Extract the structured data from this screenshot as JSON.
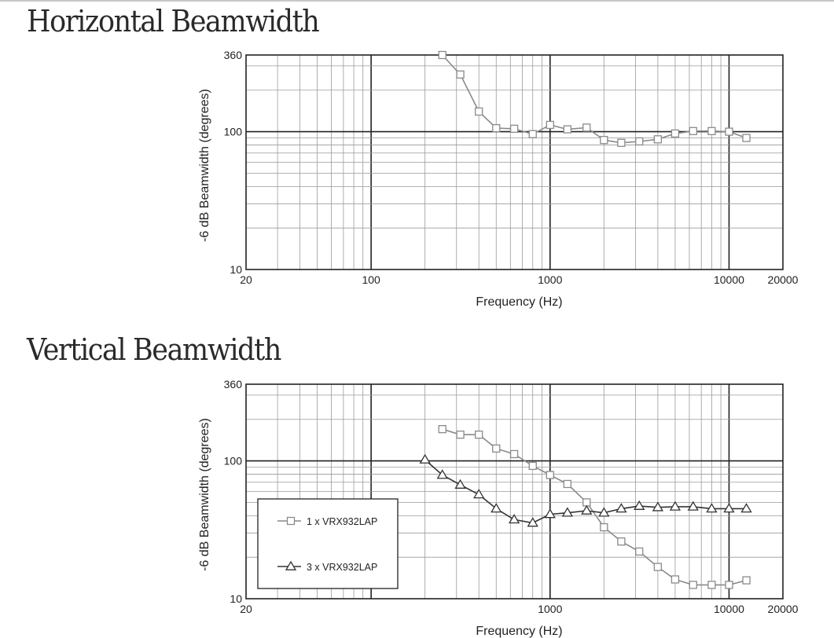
{
  "titles": {
    "horizontal": "Horizontal Beamwidth",
    "vertical": "Vertical Beamwidth"
  },
  "colors": {
    "grid_minor": "#9a9a9a",
    "grid_major": "#222222",
    "series_1": "#8a8a8a",
    "series_3": "#333333"
  },
  "chart_data": [
    {
      "type": "line",
      "title": "Horizontal Beamwidth",
      "xlabel": "Frequency (Hz)",
      "ylabel": "-6 dB Beamwidth (degrees)",
      "x_scale": "log",
      "y_scale": "log",
      "xlim": [
        20,
        20000
      ],
      "ylim": [
        10,
        360
      ],
      "x_ticks": [
        {
          "value": 20,
          "label": "20"
        },
        {
          "value": 100,
          "label": "100"
        },
        {
          "value": 1000,
          "label": "1000"
        },
        {
          "value": 10000,
          "label": "10000"
        },
        {
          "value": 20000,
          "label": "20000"
        }
      ],
      "y_ticks": [
        {
          "value": 360,
          "label": "360"
        },
        {
          "value": 100,
          "label": "100"
        },
        {
          "value": 10,
          "label": "10"
        }
      ],
      "grid": true,
      "legend": null,
      "series": [
        {
          "marker": "square",
          "x": [
            250,
            315,
            400,
            500,
            630,
            800,
            1000,
            1250,
            1600,
            2000,
            2500,
            3150,
            4000,
            5000,
            6300,
            8000,
            10000,
            12500
          ],
          "y": [
            360,
            260,
            140,
            106,
            105,
            96,
            112,
            104,
            107,
            87,
            83,
            85,
            88,
            97,
            101,
            101,
            100,
            90
          ]
        }
      ]
    },
    {
      "type": "line",
      "title": "Vertical Beamwidth",
      "xlabel": "Frequency (Hz)",
      "ylabel": "-6 dB Beamwidth (degrees)",
      "x_scale": "log",
      "y_scale": "log",
      "xlim": [
        20,
        20000
      ],
      "ylim": [
        10,
        360
      ],
      "x_ticks": [
        {
          "value": 20,
          "label": "20"
        },
        {
          "value": 1000,
          "label": "1000"
        },
        {
          "value": 10000,
          "label": "10000"
        },
        {
          "value": 20000,
          "label": "20000"
        }
      ],
      "y_ticks": [
        {
          "value": 360,
          "label": "360"
        },
        {
          "value": 100,
          "label": "100"
        },
        {
          "value": 10,
          "label": "10"
        }
      ],
      "grid": true,
      "legend": "bottom-left",
      "series": [
        {
          "name": "1 x VRX932LAP",
          "marker": "square",
          "x": [
            250,
            315,
            400,
            500,
            630,
            800,
            1000,
            1250,
            1600,
            2000,
            2500,
            3150,
            4000,
            5000,
            6300,
            8000,
            10000,
            12500
          ],
          "y": [
            170,
            155,
            155,
            123,
            112,
            92,
            79,
            68,
            50,
            33,
            26,
            22,
            17,
            13.8,
            12.6,
            12.6,
            12.6,
            13.6
          ]
        },
        {
          "name": "3 x VRX932LAP",
          "marker": "triangle",
          "x": [
            200,
            250,
            315,
            400,
            500,
            630,
            800,
            1000,
            1250,
            1600,
            2000,
            2500,
            3150,
            4000,
            5000,
            6300,
            8000,
            10000,
            12500
          ],
          "y": [
            102,
            79,
            67,
            57,
            45,
            37.5,
            35.5,
            41,
            42,
            43.5,
            42,
            45,
            47,
            46,
            46.5,
            46.5,
            45,
            45,
            45
          ]
        }
      ]
    }
  ]
}
